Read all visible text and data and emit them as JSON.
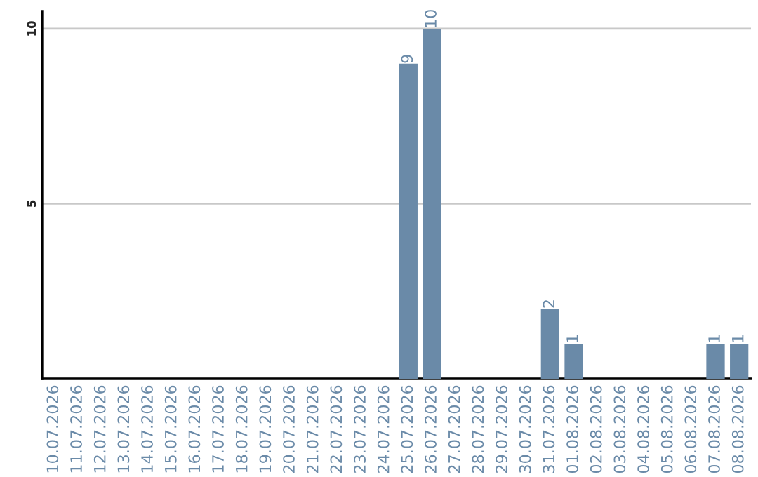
{
  "chart_data": {
    "type": "bar",
    "categories": [
      "10.07.2026",
      "11.07.2026",
      "12.07.2026",
      "13.07.2026",
      "14.07.2026",
      "15.07.2026",
      "16.07.2026",
      "17.07.2026",
      "18.07.2026",
      "19.07.2026",
      "20.07.2026",
      "21.07.2026",
      "22.07.2026",
      "23.07.2026",
      "24.07.2026",
      "25.07.2026",
      "26.07.2026",
      "27.07.2026",
      "28.07.2026",
      "29.07.2026",
      "30.07.2026",
      "31.07.2026",
      "01.08.2026",
      "02.08.2026",
      "03.08.2026",
      "04.08.2026",
      "05.08.2026",
      "06.08.2026",
      "07.08.2026",
      "08.08.2026"
    ],
    "values": [
      0,
      0,
      0,
      0,
      0,
      0,
      0,
      0,
      0,
      0,
      0,
      0,
      0,
      0,
      0,
      9,
      10,
      0,
      0,
      0,
      0,
      2,
      1,
      0,
      0,
      0,
      0,
      0,
      1,
      1
    ],
    "value_labels": [
      null,
      null,
      null,
      null,
      null,
      null,
      null,
      null,
      null,
      null,
      null,
      null,
      null,
      null,
      null,
      "9",
      "10",
      null,
      null,
      null,
      null,
      "2",
      "1",
      null,
      null,
      null,
      null,
      null,
      "1",
      "1"
    ],
    "color": "#6a8aa8",
    "ylim": [
      0,
      10.5
    ],
    "yticks": [
      {
        "value": 0,
        "label": null
      },
      5,
      10
    ],
    "grid": "y"
  }
}
